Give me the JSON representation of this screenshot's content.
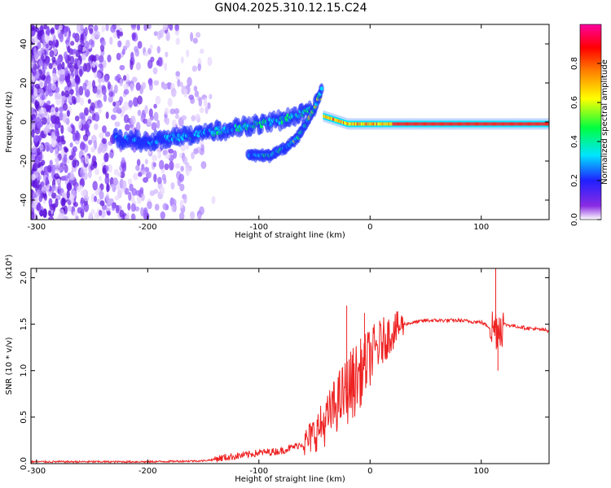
{
  "title": "GN04.2025.310.12.15.C24",
  "chart_data": [
    {
      "type": "heatmap",
      "xlabel": "Height of straight line (km)",
      "ylabel": "Frequency (Hz)",
      "xlim": [
        -305,
        161
      ],
      "ylim": [
        -50,
        50
      ],
      "x_ticks": [
        -300,
        -200,
        -100,
        0,
        100
      ],
      "y_ticks": [
        -40,
        -20,
        0,
        20,
        40
      ],
      "colorbar": {
        "label": "Normalized spectral amplitude",
        "range": [
          0,
          1
        ],
        "ticks": [
          "0.0",
          "0.2",
          "0.4",
          "0.6",
          "0.8"
        ],
        "colors": [
          "#ffffff",
          "#8a2be2",
          "#2020ff",
          "#00e5ff",
          "#00ff40",
          "#ffff00",
          "#ff8000",
          "#ff0000",
          "#ff00a0"
        ]
      },
      "features": {
        "main_trace": [
          {
            "x": -230,
            "y": -8
          },
          {
            "x": -200,
            "y": -10
          },
          {
            "x": -180,
            "y": -8
          },
          {
            "x": -160,
            "y": -7
          },
          {
            "x": -140,
            "y": -5
          },
          {
            "x": -120,
            "y": -3
          },
          {
            "x": -100,
            "y": -1
          },
          {
            "x": -80,
            "y": 1
          },
          {
            "x": -65,
            "y": 4
          },
          {
            "x": -52,
            "y": 7
          },
          {
            "x": -45,
            "y": 11
          }
        ],
        "branch_trace": [
          {
            "x": -110,
            "y": -17
          },
          {
            "x": -90,
            "y": -17
          },
          {
            "x": -75,
            "y": -13
          },
          {
            "x": -65,
            "y": -8
          },
          {
            "x": -57,
            "y": 0
          },
          {
            "x": -50,
            "y": 7
          },
          {
            "x": -43,
            "y": 18
          }
        ],
        "carrier_trace": [
          {
            "x": -42,
            "y": 3
          },
          {
            "x": -20,
            "y": -1
          },
          {
            "x": 0,
            "y": -1
          },
          {
            "x": 50,
            "y": -1
          },
          {
            "x": 100,
            "y": -1
          },
          {
            "x": 161,
            "y": -1
          }
        ]
      }
    },
    {
      "type": "line",
      "xlabel": "Height of straight line (km)",
      "ylabel": "SNR (10 * v/v)",
      "y_multiplier": "(x10⁴)",
      "xlim": [
        -305,
        161
      ],
      "ylim": [
        0,
        2.1
      ],
      "x_ticks": [
        -300,
        -200,
        -100,
        0,
        100
      ],
      "y_ticks": [
        0.0,
        0.5,
        1.0,
        1.5,
        2.0
      ],
      "series": [
        {
          "color": "#ee2222",
          "x": [
            -305,
            -250,
            -200,
            -150,
            -130,
            -110,
            -100,
            -80,
            -60,
            -40,
            -30,
            -20,
            -10,
            0,
            10,
            20,
            30,
            50,
            80,
            100,
            110,
            120,
            140,
            161
          ],
          "y": [
            0.01,
            0.01,
            0.01,
            0.02,
            0.05,
            0.08,
            0.1,
            0.12,
            0.2,
            0.45,
            0.65,
            0.8,
            0.95,
            1.15,
            1.3,
            1.42,
            1.5,
            1.54,
            1.54,
            1.52,
            1.45,
            1.5,
            1.46,
            1.43
          ]
        }
      ],
      "spikes": [
        {
          "x": -21,
          "y": 1.7
        },
        {
          "x": -5,
          "y": 1.62
        },
        {
          "x": 113,
          "y": 2.1
        },
        {
          "x": 115,
          "y": 1.0
        }
      ]
    }
  ]
}
